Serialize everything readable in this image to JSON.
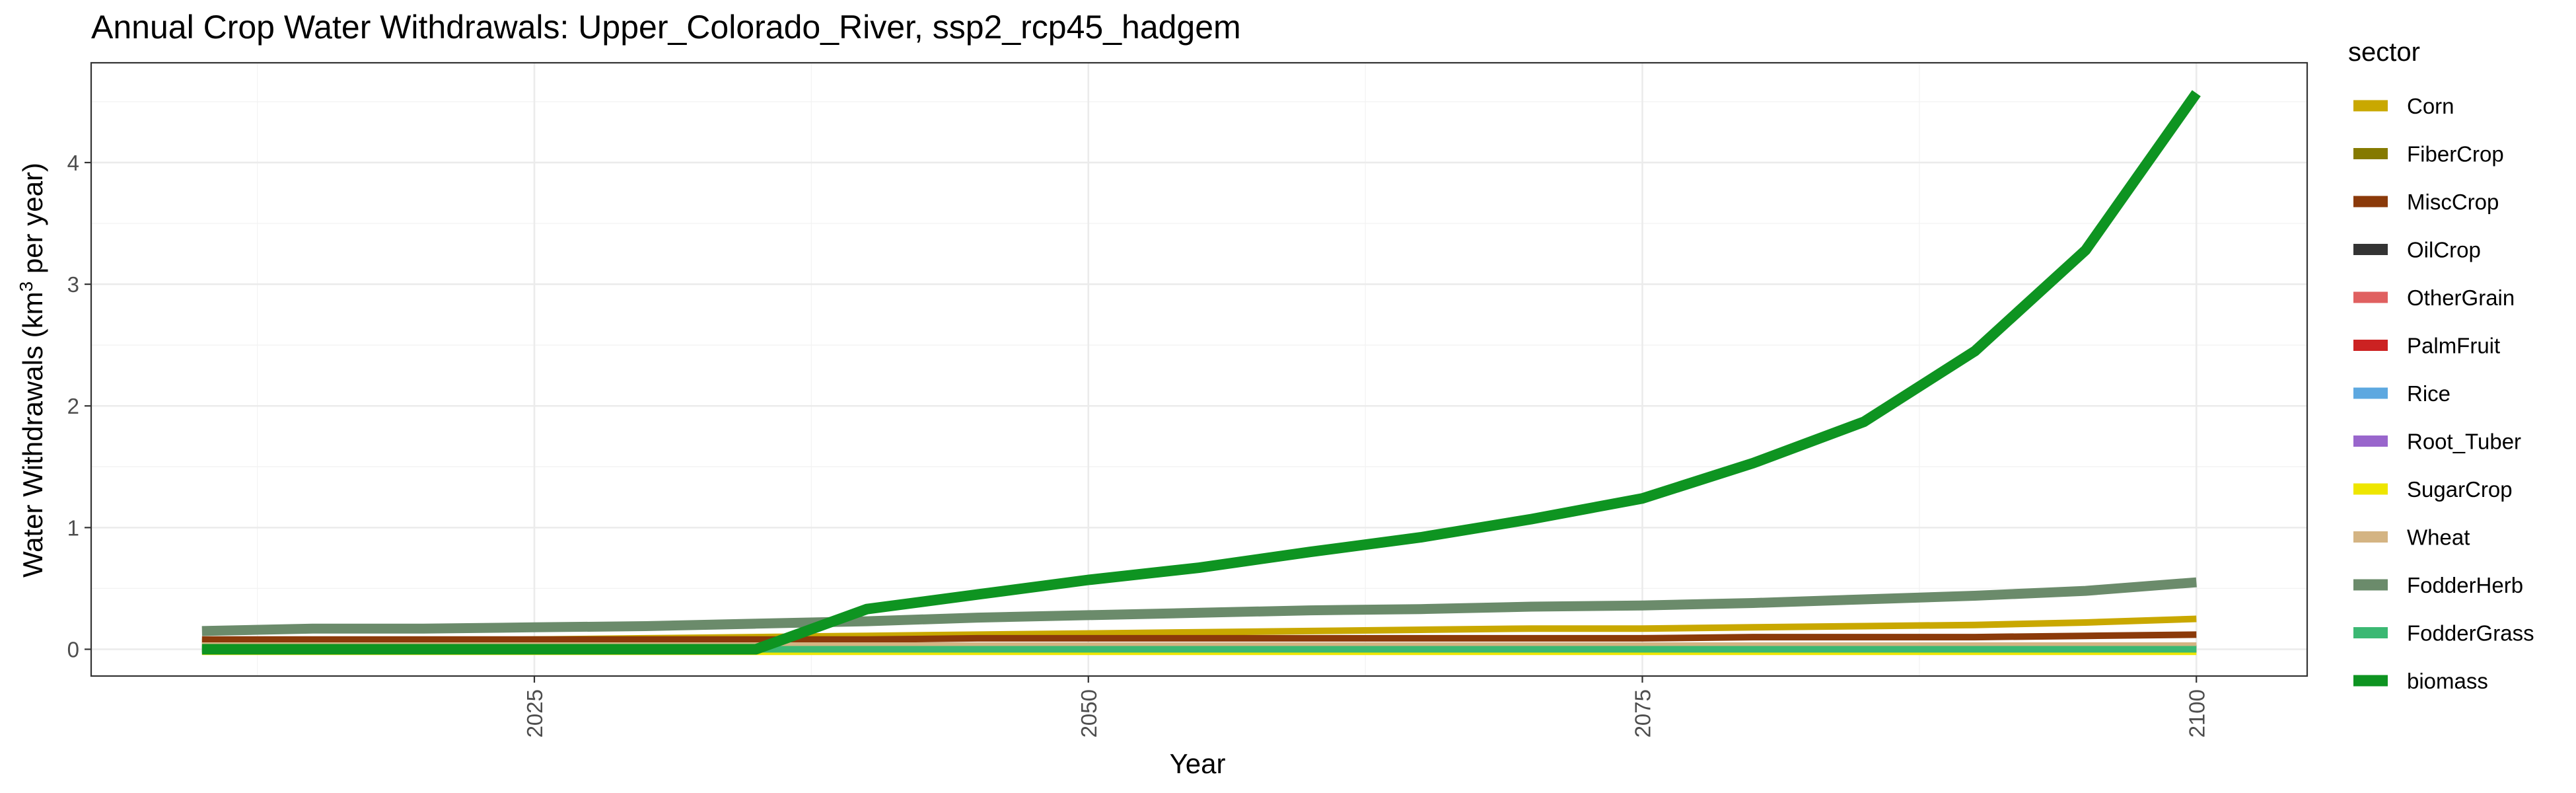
{
  "chart_data": {
    "type": "line",
    "title": "Annual Crop Water Withdrawals: Upper_Colorado_River, ssp2_rcp45_hadgem",
    "xlabel": "Year",
    "ylabel_main": "Water Withdrawals (km",
    "ylabel_sup": "3",
    "ylabel_tail": " per year)",
    "xlim": [
      2005,
      2105
    ],
    "ylim": [
      -0.22,
      4.82
    ],
    "x_ticks": [
      2025,
      2050,
      2075,
      2100
    ],
    "x_tick_labels": [
      "2025",
      "2050",
      "2075",
      "2100"
    ],
    "y_ticks": [
      0,
      1,
      2,
      3,
      4
    ],
    "y_tick_labels": [
      "0",
      "1",
      "2",
      "3",
      "4"
    ],
    "grid": true,
    "legend_title": "sector",
    "legend_position": "right",
    "x": [
      2010,
      2015,
      2020,
      2025,
      2030,
      2035,
      2040,
      2045,
      2050,
      2055,
      2060,
      2065,
      2070,
      2075,
      2080,
      2085,
      2090,
      2095,
      2100
    ],
    "series": [
      {
        "name": "Corn",
        "color": "#C9A800",
        "values": [
          0.06,
          0.07,
          0.07,
          0.08,
          0.09,
          0.1,
          0.11,
          0.12,
          0.13,
          0.14,
          0.15,
          0.16,
          0.17,
          0.17,
          0.18,
          0.19,
          0.2,
          0.22,
          0.25
        ]
      },
      {
        "name": "FiberCrop",
        "color": "#857A00",
        "values": [
          0.01,
          0.01,
          0.01,
          0.01,
          0.01,
          0.01,
          0.01,
          0.01,
          0.01,
          0.01,
          0.01,
          0.01,
          0.01,
          0.01,
          0.01,
          0.01,
          0.01,
          0.01,
          0.01
        ]
      },
      {
        "name": "MiscCrop",
        "color": "#8B3A0A",
        "values": [
          0.08,
          0.08,
          0.08,
          0.08,
          0.08,
          0.08,
          0.08,
          0.09,
          0.09,
          0.09,
          0.09,
          0.09,
          0.09,
          0.09,
          0.1,
          0.1,
          0.1,
          0.11,
          0.12
        ]
      },
      {
        "name": "OilCrop",
        "color": "#333333",
        "values": [
          0.0,
          0.0,
          0.0,
          0.0,
          0.0,
          0.0,
          0.0,
          0.0,
          0.0,
          0.0,
          0.0,
          0.0,
          0.0,
          0.0,
          0.0,
          0.0,
          0.0,
          0.0,
          0.0
        ]
      },
      {
        "name": "OtherGrain",
        "color": "#E06060",
        "values": [
          0.0,
          0.0,
          0.0,
          0.0,
          0.0,
          0.0,
          0.0,
          0.0,
          0.0,
          0.0,
          0.0,
          0.0,
          0.0,
          0.0,
          0.0,
          0.0,
          0.0,
          0.0,
          0.0
        ]
      },
      {
        "name": "PalmFruit",
        "color": "#CC2222",
        "values": [
          0.0,
          0.0,
          0.0,
          0.0,
          0.0,
          0.0,
          0.0,
          0.0,
          0.0,
          0.0,
          0.0,
          0.0,
          0.0,
          0.0,
          0.0,
          0.0,
          0.0,
          0.0,
          0.0
        ]
      },
      {
        "name": "Rice",
        "color": "#5DA8E0",
        "values": [
          0.0,
          0.0,
          0.0,
          0.0,
          0.0,
          0.0,
          0.0,
          0.0,
          0.0,
          0.0,
          0.0,
          0.0,
          0.0,
          0.0,
          0.0,
          0.0,
          0.0,
          0.0,
          0.0
        ]
      },
      {
        "name": "Root_Tuber",
        "color": "#9966CC",
        "values": [
          0.0,
          0.0,
          0.0,
          0.0,
          0.0,
          0.0,
          0.0,
          0.0,
          0.0,
          0.0,
          0.0,
          0.0,
          0.0,
          0.0,
          0.0,
          0.0,
          0.0,
          0.0,
          0.0
        ]
      },
      {
        "name": "SugarCrop",
        "color": "#EEE600",
        "values": [
          -0.02,
          -0.02,
          -0.02,
          -0.02,
          -0.02,
          -0.02,
          -0.02,
          -0.02,
          -0.02,
          -0.02,
          -0.02,
          -0.02,
          -0.02,
          -0.02,
          -0.02,
          -0.02,
          -0.02,
          -0.02,
          -0.02
        ]
      },
      {
        "name": "Wheat",
        "color": "#D4B483",
        "values": [
          0.03,
          0.03,
          0.03,
          0.03,
          0.03,
          0.03,
          0.03,
          0.03,
          0.03,
          0.03,
          0.03,
          0.03,
          0.03,
          0.03,
          0.03,
          0.03,
          0.03,
          0.03,
          0.03
        ]
      },
      {
        "name": "FodderHerb",
        "color": "#6B8B6B",
        "values": [
          0.15,
          0.17,
          0.17,
          0.18,
          0.19,
          0.21,
          0.23,
          0.26,
          0.28,
          0.3,
          0.32,
          0.33,
          0.35,
          0.36,
          0.38,
          0.41,
          0.44,
          0.48,
          0.55
        ]
      },
      {
        "name": "FodderGrass",
        "color": "#3BB873",
        "values": [
          0.0,
          0.0,
          0.0,
          0.0,
          0.0,
          0.0,
          0.0,
          0.0,
          0.0,
          0.0,
          0.0,
          0.0,
          0.0,
          0.0,
          0.0,
          0.0,
          0.0,
          0.0,
          0.0
        ]
      },
      {
        "name": "biomass",
        "color": "#0E9421",
        "values": [
          0.0,
          0.0,
          0.0,
          0.0,
          0.0,
          0.0,
          0.33,
          0.45,
          0.57,
          0.67,
          0.8,
          0.92,
          1.07,
          1.24,
          1.53,
          1.87,
          2.45,
          3.28,
          4.57
        ]
      }
    ]
  }
}
